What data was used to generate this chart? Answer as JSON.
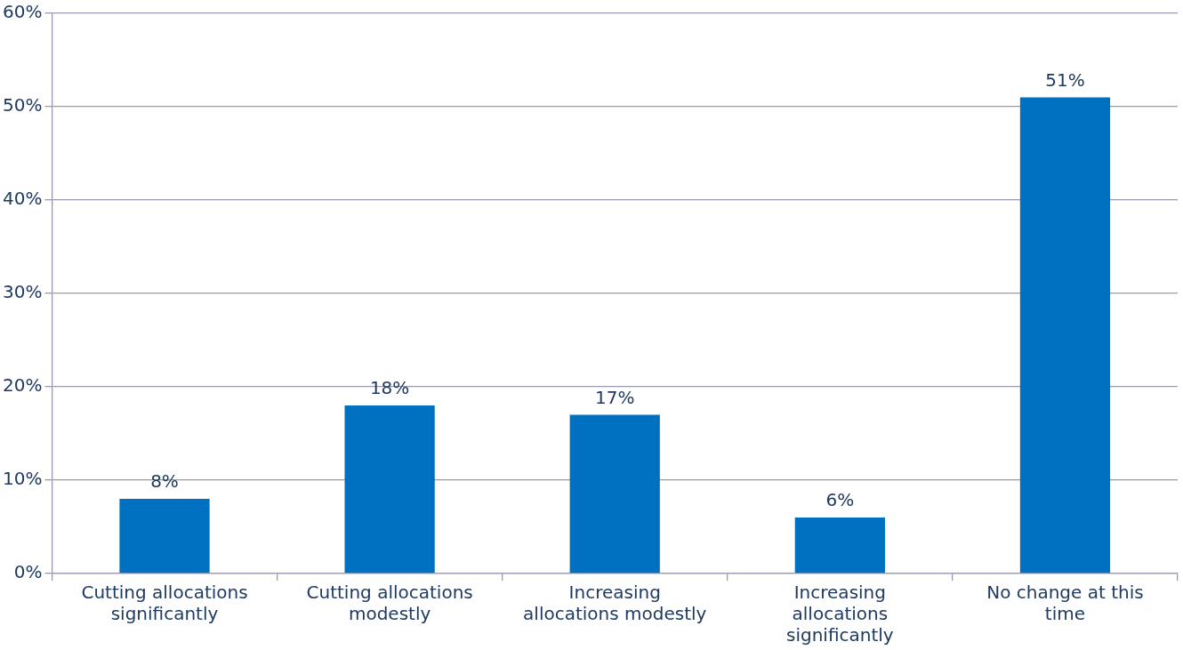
{
  "chart_data": {
    "type": "bar",
    "categories": [
      "Cutting allocations significantly",
      "Cutting allocations modestly",
      "Increasing allocations modestly",
      "Increasing allocations significantly",
      "No change at this time"
    ],
    "values": [
      8,
      18,
      17,
      6,
      51
    ],
    "value_labels": [
      "8%",
      "18%",
      "17%",
      "6%",
      "51%"
    ],
    "color": "#0070c0",
    "ylim": [
      0,
      60
    ],
    "yticks": [
      {
        "value": 0,
        "label": "0%"
      },
      {
        "value": 10,
        "label": "10%"
      },
      {
        "value": 20,
        "label": "20%"
      },
      {
        "value": 30,
        "label": "30%"
      },
      {
        "value": 40,
        "label": "40%"
      },
      {
        "value": 50,
        "label": "50%"
      },
      {
        "value": 60,
        "label": "60%"
      }
    ],
    "grid": "y",
    "legend": false
  }
}
